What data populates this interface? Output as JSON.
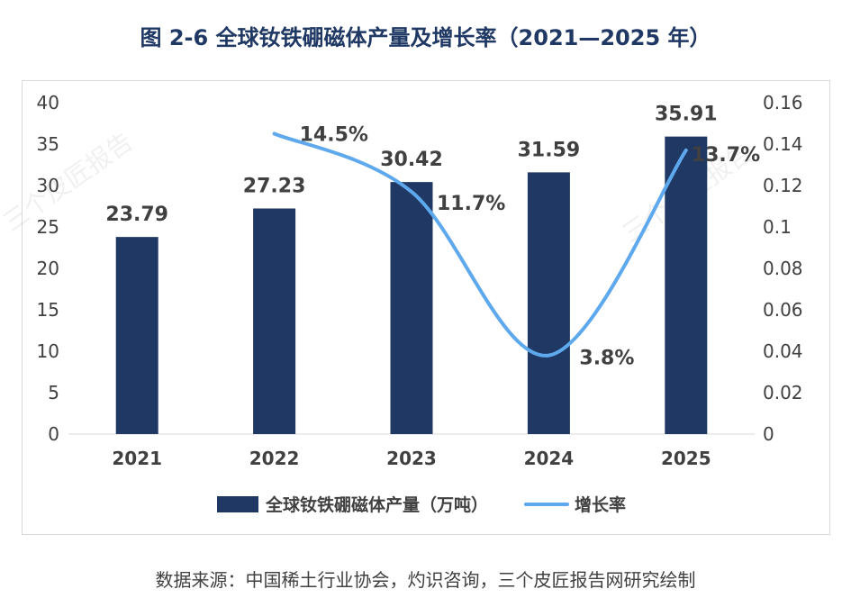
{
  "title": "图 2-6 全球钕铁硼磁体产量及增长率（2021—2025 年）",
  "source": "数据来源：中国稀土行业协会，灼识咨询，三个皮匠报告网研究绘制",
  "watermark": "三个皮匠报告",
  "colors": {
    "bar": "#1f3864",
    "line": "#5ea9ee",
    "title": "#1f3864"
  },
  "chart_data": {
    "type": "bar",
    "categories": [
      "2021",
      "2022",
      "2023",
      "2024",
      "2025"
    ],
    "series": [
      {
        "name": "全球钕铁硼磁体产量（万吨）",
        "type": "bar",
        "axis": "left",
        "values": [
          23.79,
          27.23,
          30.42,
          31.59,
          35.91
        ],
        "labels": [
          "23.79",
          "27.23",
          "30.42",
          "31.59",
          "35.91"
        ]
      },
      {
        "name": "增长率",
        "type": "line",
        "axis": "right",
        "x": [
          "2022",
          "2023",
          "2024",
          "2025"
        ],
        "values": [
          0.145,
          0.117,
          0.038,
          0.137
        ],
        "labels": [
          "14.5%",
          "11.7%",
          "3.8%",
          "13.7%"
        ]
      }
    ],
    "ylim_left": [
      0,
      40
    ],
    "yticks_left": [
      "0",
      "5",
      "10",
      "15",
      "20",
      "25",
      "30",
      "35",
      "40"
    ],
    "ylim_right": [
      0,
      0.16
    ],
    "yticks_right": [
      "0",
      "0.02",
      "0.04",
      "0.06",
      "0.08",
      "0.1",
      "0.12",
      "0.14",
      "0.16"
    ],
    "grid": false,
    "legend_position": "bottom"
  }
}
